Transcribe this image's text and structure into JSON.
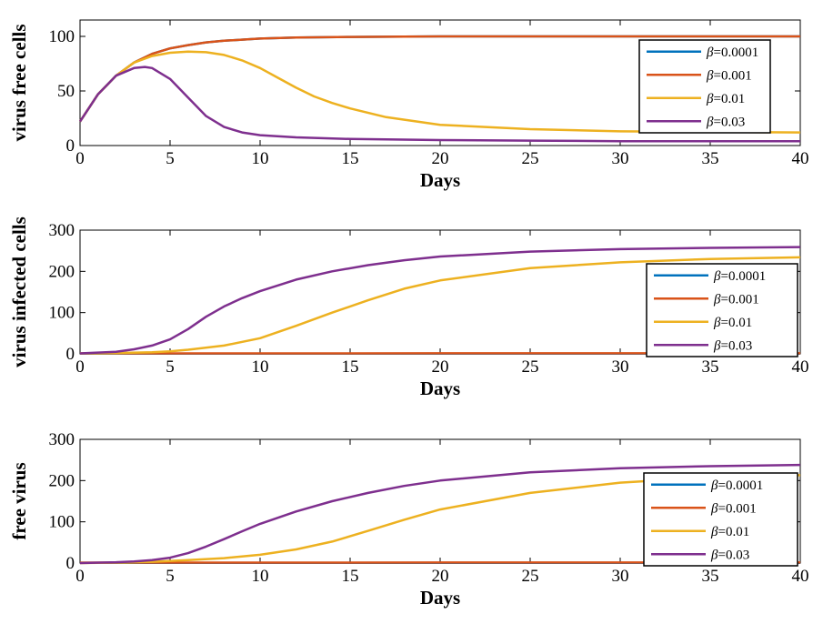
{
  "chart_data": [
    {
      "type": "line",
      "xlabel": "Days",
      "ylabel": "virus free cells",
      "xlim": [
        0,
        40
      ],
      "ylim": [
        0,
        115
      ],
      "xticks": [
        0,
        5,
        10,
        15,
        20,
        25,
        30,
        35,
        40
      ],
      "yticks": [
        0,
        50,
        100
      ],
      "legend": {
        "position": "top-right",
        "prefix": "β",
        "labels": [
          "=0.0001",
          "=0.001",
          "=0.01",
          "=0.03"
        ]
      },
      "series": [
        {
          "name": "β=0.0001",
          "color": "#0072BD",
          "x": [
            0,
            1,
            2,
            3,
            4,
            5,
            6,
            7,
            8,
            10,
            12,
            15,
            20,
            25,
            30,
            35,
            40
          ],
          "y": [
            22,
            47,
            64,
            76,
            84,
            89,
            92,
            94.5,
            96,
            98,
            99,
            99.5,
            100,
            100,
            100,
            100,
            100
          ]
        },
        {
          "name": "β=0.001",
          "color": "#D95319",
          "x": [
            0,
            1,
            2,
            3,
            4,
            5,
            6,
            7,
            8,
            10,
            12,
            15,
            20,
            25,
            30,
            35,
            40
          ],
          "y": [
            22,
            47,
            64,
            76,
            84,
            89,
            92,
            94.5,
            96,
            98,
            99,
            99.5,
            100,
            100,
            100,
            100,
            100
          ]
        },
        {
          "name": "β=0.01",
          "color": "#EDB120",
          "x": [
            0,
            1,
            2,
            3,
            4,
            5,
            6,
            7,
            8,
            9,
            10,
            11,
            12,
            13,
            14,
            15,
            17,
            20,
            25,
            30,
            35,
            40
          ],
          "y": [
            22,
            47,
            64,
            76,
            82,
            85,
            86,
            85.5,
            83,
            78,
            71,
            62,
            53,
            45,
            39,
            34,
            26,
            19,
            15,
            13,
            12.5,
            12
          ]
        },
        {
          "name": "β=0.03",
          "color": "#7E2F8E",
          "x": [
            0,
            1,
            2,
            3,
            3.6,
            4,
            5,
            6,
            7,
            8,
            9,
            10,
            12,
            15,
            20,
            25,
            30,
            35,
            40
          ],
          "y": [
            22,
            47,
            64,
            71,
            72,
            71,
            61,
            44,
            27,
            17,
            12,
            9.5,
            7.5,
            6,
            5,
            4.5,
            4,
            4,
            4
          ]
        }
      ]
    },
    {
      "type": "line",
      "xlabel": "Days",
      "ylabel": "virus infected cells",
      "xlim": [
        0,
        40
      ],
      "ylim": [
        0,
        300
      ],
      "xticks": [
        0,
        5,
        10,
        15,
        20,
        25,
        30,
        35,
        40
      ],
      "yticks": [
        0,
        100,
        200,
        300
      ],
      "legend": {
        "position": "right",
        "prefix": "β",
        "labels": [
          "=0.0001",
          "=0.001",
          "=0.01",
          "=0.03"
        ]
      },
      "series": [
        {
          "name": "β=0.0001",
          "color": "#0072BD",
          "x": [
            0,
            10,
            20,
            30,
            40
          ],
          "y": [
            0.5,
            0.5,
            0.5,
            0.5,
            0.5
          ]
        },
        {
          "name": "β=0.001",
          "color": "#D95319",
          "x": [
            0,
            10,
            20,
            30,
            40
          ],
          "y": [
            1,
            1.2,
            1.3,
            1.3,
            1.3
          ]
        },
        {
          "name": "β=0.01",
          "color": "#EDB120",
          "x": [
            0,
            2,
            4,
            5,
            6,
            8,
            10,
            12,
            14,
            16,
            18,
            20,
            25,
            30,
            35,
            40
          ],
          "y": [
            1,
            2,
            4,
            6,
            10,
            20,
            38,
            68,
            100,
            130,
            158,
            178,
            208,
            222,
            230,
            234
          ]
        },
        {
          "name": "β=0.03",
          "color": "#7E2F8E",
          "x": [
            0,
            2,
            3,
            4,
            5,
            6,
            7,
            8,
            9,
            10,
            12,
            14,
            16,
            18,
            20,
            25,
            30,
            35,
            40
          ],
          "y": [
            1,
            5,
            11,
            20,
            35,
            60,
            90,
            115,
            135,
            152,
            180,
            200,
            215,
            227,
            236,
            248,
            254,
            257,
            259
          ]
        }
      ]
    },
    {
      "type": "line",
      "xlabel": "Days",
      "ylabel": "free virus",
      "xlim": [
        0,
        40
      ],
      "ylim": [
        0,
        300
      ],
      "xticks": [
        0,
        5,
        10,
        15,
        20,
        25,
        30,
        35,
        40
      ],
      "yticks": [
        0,
        100,
        200,
        300
      ],
      "legend": {
        "position": "right",
        "prefix": "β",
        "labels": [
          "=0.0001",
          "=0.001",
          "=0.01",
          "=0.03"
        ]
      },
      "series": [
        {
          "name": "β=0.0001",
          "color": "#0072BD",
          "x": [
            0,
            10,
            20,
            30,
            40
          ],
          "y": [
            0.5,
            0.5,
            0.5,
            0.5,
            0.5
          ]
        },
        {
          "name": "β=0.001",
          "color": "#D95319",
          "x": [
            0,
            10,
            20,
            30,
            40
          ],
          "y": [
            1,
            1.2,
            1.3,
            1.3,
            1.3
          ]
        },
        {
          "name": "β=0.01",
          "color": "#EDB120",
          "x": [
            0,
            2,
            4,
            6,
            8,
            10,
            12,
            14,
            16,
            18,
            20,
            25,
            30,
            35,
            40
          ],
          "y": [
            0,
            1,
            3,
            7,
            12,
            20,
            33,
            52,
            78,
            105,
            130,
            170,
            195,
            208,
            213
          ]
        },
        {
          "name": "β=0.03",
          "color": "#7E2F8E",
          "x": [
            0,
            2,
            3,
            4,
            5,
            6,
            7,
            8,
            9,
            10,
            12,
            14,
            16,
            18,
            20,
            25,
            30,
            35,
            40
          ],
          "y": [
            0,
            2,
            4,
            7,
            13,
            24,
            40,
            58,
            77,
            95,
            125,
            150,
            170,
            187,
            200,
            220,
            230,
            235,
            238
          ]
        }
      ]
    }
  ]
}
